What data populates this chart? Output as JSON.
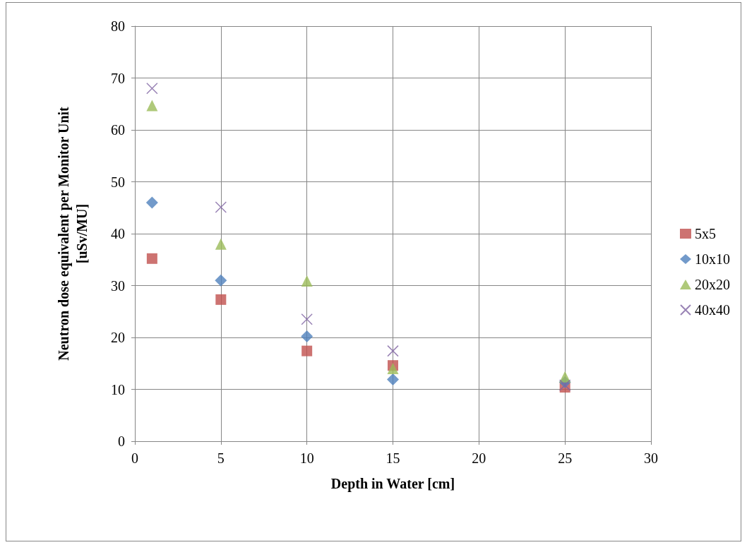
{
  "chart_data": {
    "type": "scatter",
    "xlabel": "Depth in Water [cm]",
    "ylabel": "Neutron dose equivalent per Monitor Unit\n[uSv/MU]",
    "xlim": [
      0,
      30
    ],
    "xticks": [
      0,
      5,
      10,
      15,
      20,
      25,
      30
    ],
    "ylim": [
      0,
      80
    ],
    "yticks": [
      0,
      10,
      20,
      30,
      40,
      50,
      60,
      70,
      80
    ],
    "grid": true,
    "legend": "right",
    "x": [
      1,
      5,
      10,
      15,
      25
    ],
    "series": [
      {
        "name": "5x5",
        "color": "#c0504d",
        "marker": "square",
        "values": [
          35.2,
          27.3,
          17.4,
          14.6,
          10.4
        ]
      },
      {
        "name": "10x10",
        "color": "#4f81bd",
        "marker": "diamond",
        "values": [
          46.0,
          31.0,
          20.2,
          11.9,
          11.4
        ]
      },
      {
        "name": "20x20",
        "color": "#9bbb59",
        "marker": "triangle",
        "values": [
          64.7,
          38.0,
          30.9,
          14.0,
          12.4
        ]
      },
      {
        "name": "40x40",
        "color": "#8064a2",
        "marker": "cross",
        "values": [
          68.0,
          45.1,
          23.5,
          17.4,
          10.8
        ]
      }
    ]
  }
}
